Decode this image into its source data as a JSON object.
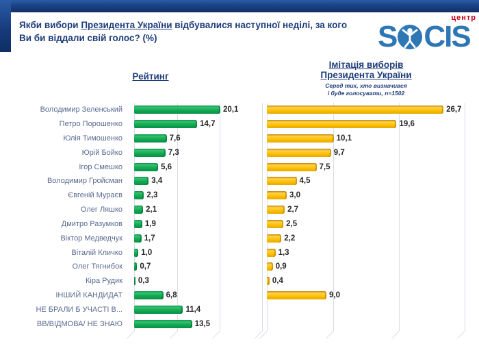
{
  "header": {
    "question_prefix": "Якби вибори ",
    "question_underlined": "Президента України",
    "question_suffix": " відбувалися наступної неділі, за кого Ви би віддали свій голос? (%)"
  },
  "logo": {
    "s": "S",
    "cis": "CIS",
    "center_label": "центр",
    "brand_color": "#2e77b5",
    "center_color": "#c30010",
    "person_icon": "vitruvian-person-in-circle"
  },
  "titles": {
    "rating_title": "Рейтинг",
    "imitation_title_line1": "Імітація виборів",
    "imitation_title_line2": "Президента України",
    "imitation_subtitle_line1": "Серед тих, хто визначився",
    "imitation_subtitle_line2": "і буде голосувати, n=1502"
  },
  "chart_data": {
    "type": "bar",
    "orientation": "horizontal",
    "grid": true,
    "xlim": [
      0,
      30
    ],
    "gridline_interval": 10,
    "categories": [
      "Володимир Зеленський",
      "Петро Порошенко",
      "Юлія Тимошенко",
      "Юрій Бойко",
      "Ігор Смешко",
      "Володимир Гройсман",
      "Євгеній Мураєв",
      "Олег Ляшко",
      "Дмитро Разумков",
      "Віктор Медведчук",
      "Віталій Кличко",
      "Олег Тягнибок",
      "Кіра Рудик",
      "ІНШИЙ КАНДИДАТ",
      "НЕ БРАЛИ Б УЧАСТІ В...",
      "ВВ/ВІДМОВА/ НЕ ЗНАЮ"
    ],
    "series": [
      {
        "name": "Рейтинг",
        "color": "#0fa04c",
        "values": [
          20.1,
          14.7,
          7.6,
          7.3,
          5.6,
          3.4,
          2.3,
          2.1,
          1.9,
          1.7,
          1.0,
          0.7,
          0.3,
          6.8,
          11.4,
          13.5
        ],
        "labels": [
          "20,1",
          "14,7",
          "7,6",
          "7,3",
          "5,6",
          "3,4",
          "2,3",
          "2,1",
          "1,9",
          "1,7",
          "1,0",
          "0,7",
          "0,3",
          "6,8",
          "11,4",
          "13,5"
        ]
      },
      {
        "name": "Імітація виборів Президента України",
        "color": "#ffc000",
        "values": [
          26.7,
          19.6,
          10.1,
          9.7,
          7.5,
          4.5,
          3.0,
          2.7,
          2.5,
          2.2,
          1.3,
          0.9,
          0.4,
          9.0,
          null,
          null
        ],
        "labels": [
          "26,7",
          "19,6",
          "10,1",
          "9,7",
          "7,5",
          "4,5",
          "3,0",
          "2,7",
          "2,5",
          "2,2",
          "1,3",
          "0,9",
          "0,4",
          "9,0",
          "",
          ""
        ]
      }
    ]
  }
}
